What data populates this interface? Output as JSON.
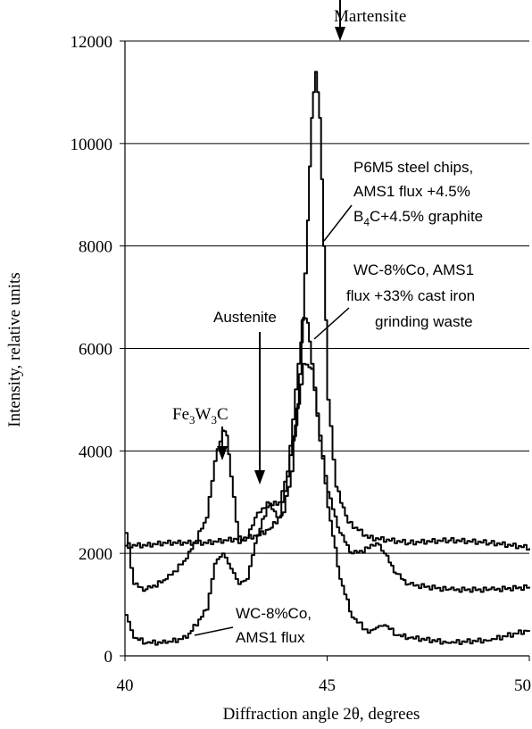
{
  "chart_data": {
    "type": "line",
    "title": "",
    "xlabel": "Diffraction angle 2θ, degrees",
    "ylabel": "Intensity, relative units",
    "xlim": [
      40,
      50
    ],
    "ylim": [
      0,
      12000
    ],
    "x_ticks": [
      "40",
      "45",
      "50"
    ],
    "y_ticks": [
      "0",
      "2000",
      "4000",
      "6000",
      "8000",
      "10000",
      "12000"
    ],
    "grid": "horizontal",
    "legend": "none",
    "series": [
      {
        "name": "P6M5 steel chips, AMS1 flux +4.5% B4C+4.5% graphite",
        "x": [
          40,
          40.5,
          41,
          41.5,
          42,
          42.5,
          43,
          43.3,
          43.6,
          43.9,
          44.1,
          44.3,
          44.5,
          44.6,
          44.7,
          44.8,
          44.9,
          45.0,
          45.2,
          45.5,
          46,
          47,
          48,
          49,
          50
        ],
        "y": [
          2150,
          2150,
          2200,
          2200,
          2200,
          2250,
          2300,
          2350,
          2500,
          2800,
          3600,
          5500,
          8500,
          10500,
          11400,
          10500,
          8000,
          5000,
          3300,
          2600,
          2300,
          2200,
          2250,
          2200,
          2100
        ]
      },
      {
        "name": "WC-8%Co, AMS1 flux +33% cast iron grinding waste",
        "x": [
          40,
          40.2,
          40.5,
          41,
          41.5,
          42,
          42.2,
          42.4,
          42.5,
          42.6,
          42.8,
          43,
          43.2,
          43.5,
          43.8,
          44,
          44.2,
          44.4,
          44.5,
          44.6,
          44.8,
          45,
          45.3,
          45.6,
          46,
          46.2,
          46.4,
          46.7,
          47,
          48,
          49,
          50
        ],
        "y": [
          2400,
          1400,
          1300,
          1500,
          1900,
          2700,
          3800,
          4400,
          4300,
          3500,
          2200,
          2300,
          2700,
          3000,
          2700,
          3500,
          5200,
          6600,
          6500,
          5700,
          4200,
          3200,
          2400,
          2000,
          2100,
          2200,
          2000,
          1600,
          1400,
          1300,
          1300,
          1350
        ]
      },
      {
        "name": "WC-8%Co, AMS1 flux",
        "x": [
          40,
          40.2,
          40.5,
          41,
          41.5,
          42,
          42.2,
          42.4,
          42.6,
          42.8,
          43,
          43.2,
          43.5,
          43.8,
          44,
          44.2,
          44.4,
          44.6,
          44.8,
          45,
          45.3,
          45.6,
          46,
          46.2,
          46.4,
          46.7,
          47,
          48,
          49,
          50
        ],
        "y": [
          800,
          350,
          250,
          250,
          350,
          900,
          1800,
          2000,
          1700,
          1400,
          1500,
          2200,
          2900,
          3000,
          3600,
          4500,
          5700,
          5600,
          4300,
          2900,
          1500,
          750,
          450,
          550,
          600,
          400,
          350,
          250,
          300,
          500
        ]
      }
    ],
    "annotations": [
      {
        "text": "Martensite",
        "arrow_x": 44.75,
        "arrow_y": 11500
      },
      {
        "text": "P6M5 steel chips,",
        "line2": "AMS1 flux +4.5%",
        "line3": "B4C+4.5% graphite"
      },
      {
        "text": "WC-8%Co, AMS1",
        "line2": "flux +33% cast iron",
        "line3": "grinding waste"
      },
      {
        "text": "Austenite",
        "arrow_x": 43.4,
        "arrow_y": 3000
      },
      {
        "text": "Fe3W3C",
        "arrow_x": 42.4,
        "arrow_y": 4400
      },
      {
        "text": "WC-8%Co,",
        "line2": "AMS1 flux"
      }
    ]
  }
}
